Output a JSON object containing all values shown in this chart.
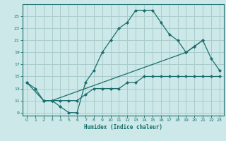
{
  "xlabel": "Humidex (Indice chaleur)",
  "background_color": "#cce8e8",
  "grid_color": "#aacccc",
  "line_color": "#1a6e6e",
  "xlim": [
    -0.5,
    23.5
  ],
  "ylim": [
    8.5,
    27.0
  ],
  "xticks": [
    0,
    1,
    2,
    3,
    4,
    5,
    6,
    7,
    8,
    9,
    10,
    11,
    12,
    13,
    14,
    15,
    16,
    17,
    18,
    19,
    20,
    21,
    22,
    23
  ],
  "yticks": [
    9,
    11,
    13,
    15,
    17,
    19,
    21,
    23,
    25
  ],
  "line1_x": [
    0,
    1,
    2,
    3,
    4,
    5,
    6,
    7,
    8,
    9,
    10,
    11,
    12,
    13,
    14,
    15,
    16,
    17,
    18,
    19,
    20,
    21
  ],
  "line1_y": [
    14,
    13,
    11,
    11,
    10,
    9,
    9,
    14,
    16,
    19,
    21,
    23,
    24,
    26,
    26,
    26,
    24,
    22,
    21,
    19,
    20,
    21
  ],
  "line2_x": [
    0,
    2,
    3,
    19,
    20,
    21,
    22,
    23
  ],
  "line2_y": [
    14,
    11,
    11,
    19,
    20,
    21,
    18,
    16
  ],
  "line3_x": [
    2,
    3,
    4,
    5,
    6,
    7,
    8,
    9,
    10,
    11,
    12,
    13,
    14,
    15,
    16,
    17,
    18,
    19,
    20,
    21,
    22,
    23
  ],
  "line3_y": [
    11,
    11,
    11,
    11,
    11,
    12,
    13,
    13,
    13,
    13,
    14,
    14,
    15,
    15,
    15,
    15,
    15,
    15,
    15,
    15,
    15,
    15
  ]
}
